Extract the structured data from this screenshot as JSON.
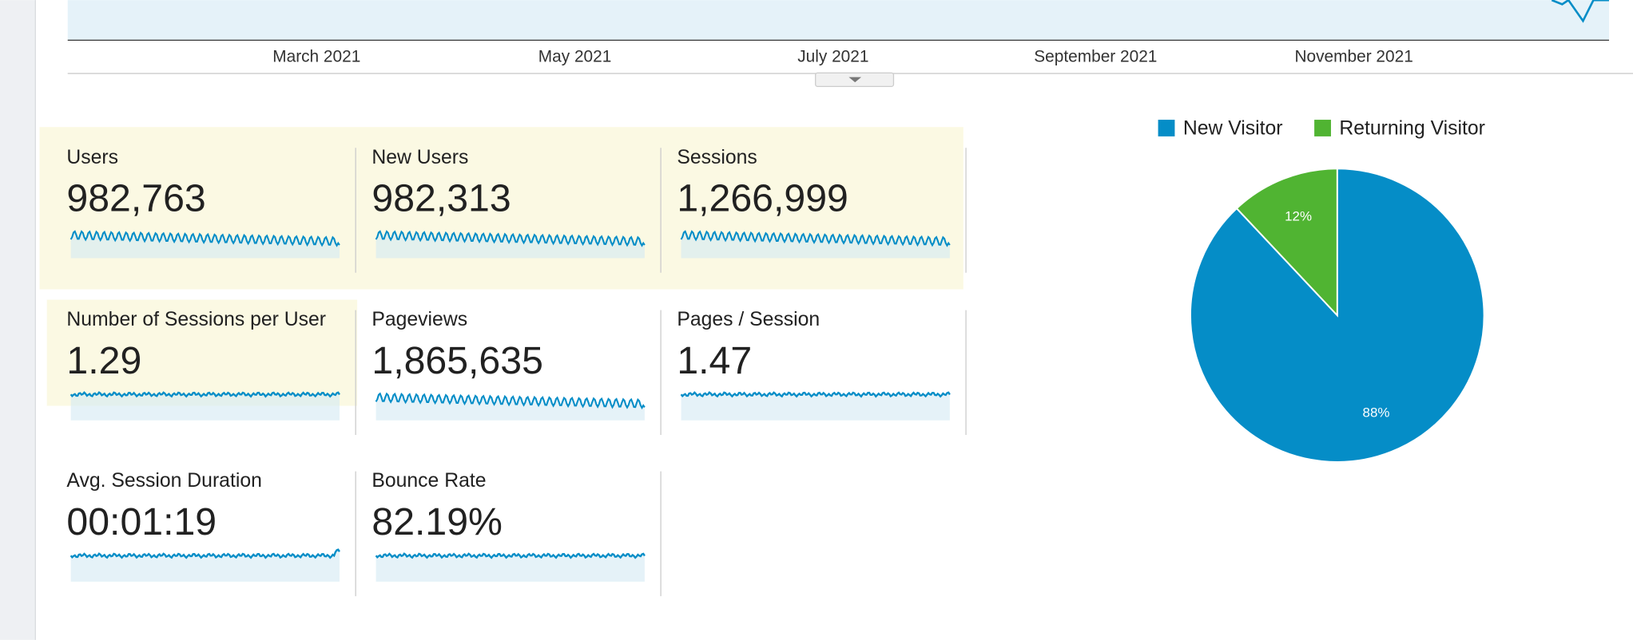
{
  "timeline": {
    "labels": [
      "March 2021",
      "May 2021",
      "July 2021",
      "September 2021",
      "November 2021"
    ]
  },
  "metrics": [
    {
      "label": "Users",
      "value": "982,763"
    },
    {
      "label": "New Users",
      "value": "982,313"
    },
    {
      "label": "Sessions",
      "value": "1,266,999"
    },
    {
      "label": "Number of Sessions per User",
      "value": "1.29"
    },
    {
      "label": "Pageviews",
      "value": "1,865,635"
    },
    {
      "label": "Pages / Session",
      "value": "1.47"
    },
    {
      "label": "Avg. Session Duration",
      "value": "00:01:19"
    },
    {
      "label": "Bounce Rate",
      "value": "82.19%"
    }
  ],
  "chart_data": {
    "type": "pie",
    "categories": [
      "New Visitor",
      "Returning Visitor"
    ],
    "values": [
      88,
      12
    ],
    "value_labels": [
      "88%",
      "12%"
    ],
    "colors": [
      "#058dc7",
      "#50b432"
    ]
  }
}
